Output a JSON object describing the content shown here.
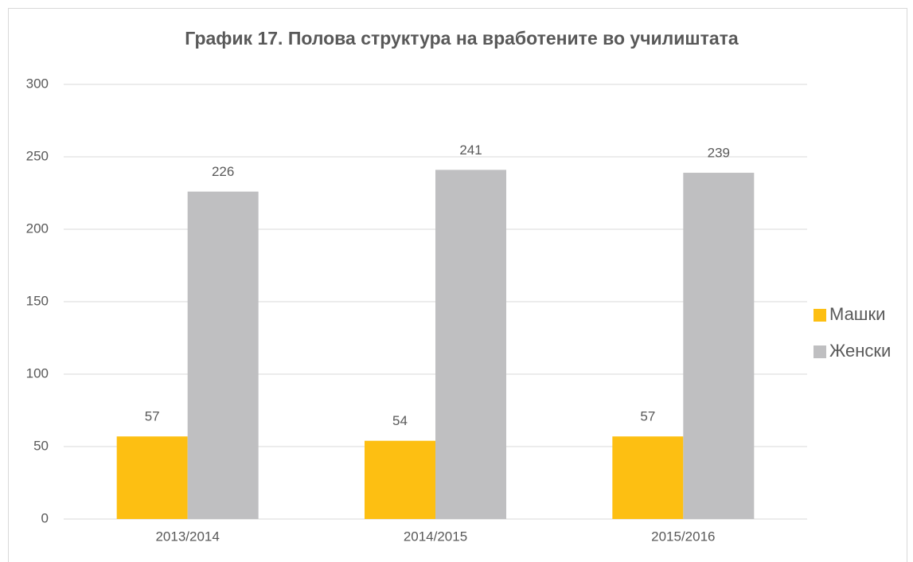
{
  "chart_data": {
    "type": "bar",
    "title": "График 17. Полова структура на вработените во училиштата",
    "categories": [
      "2013/2014",
      "2014/2015",
      "2015/2016"
    ],
    "series": [
      {
        "name": "Машки",
        "color": "#fdbf12",
        "values": [
          57,
          54,
          57
        ]
      },
      {
        "name": "Женски",
        "color": "#bfbfc1",
        "values": [
          226,
          241,
          239
        ]
      }
    ],
    "ylim": [
      0,
      300
    ],
    "yticks": [
      0,
      50,
      100,
      150,
      200,
      250,
      300
    ],
    "grid": true,
    "legend": "right"
  }
}
